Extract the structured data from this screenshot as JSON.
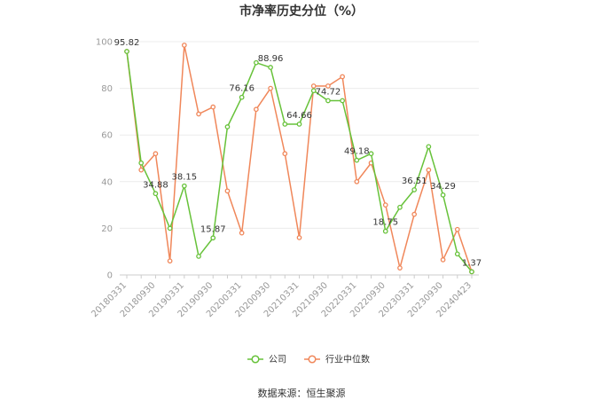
{
  "chart_data": {
    "type": "line",
    "title": "市净率历史分位（%）",
    "source": "数据来源：恒生聚源",
    "ylim": [
      0,
      100
    ],
    "yticks": [
      "0",
      "20",
      "40",
      "60",
      "80",
      "100"
    ],
    "x": [
      "20180331",
      "20180630",
      "20180930",
      "20181231",
      "20190331",
      "20190630",
      "20190930",
      "20191231",
      "20200331",
      "20200630",
      "20200930",
      "20201231",
      "20210331",
      "20210630",
      "20210930",
      "20211231",
      "20220331",
      "20220630",
      "20220930",
      "20221231",
      "20230331",
      "20230630",
      "20230930",
      "20231231",
      "20240423"
    ],
    "x_tick_labels": [
      "20180331",
      "20180930",
      "20190331",
      "20190930",
      "20200331",
      "20200930",
      "20210331",
      "20210930",
      "20220331",
      "20220930",
      "20230331",
      "20230930",
      "20240423"
    ],
    "series": [
      {
        "name": "公司",
        "color": "#67c23a",
        "values": [
          95.82,
          48,
          34.88,
          20,
          38.15,
          8,
          15.87,
          63.5,
          76.16,
          91,
          88.96,
          64.66,
          64.66,
          79,
          74.72,
          74.72,
          49.18,
          52,
          18.75,
          29,
          36.51,
          55,
          34.29,
          9,
          1.37
        ]
      },
      {
        "name": "行业中位数",
        "color": "#f0875a",
        "values": [
          95.82,
          45,
          52,
          6,
          98.5,
          69,
          72,
          36,
          18,
          71,
          80,
          52,
          16,
          81,
          81,
          85,
          40,
          48,
          30,
          3,
          26,
          45,
          6.5,
          19.5,
          1.37
        ]
      }
    ],
    "data_labels": [
      {
        "index": 0,
        "text": "95.82"
      },
      {
        "index": 2,
        "text": "34.88"
      },
      {
        "index": 4,
        "text": "38.15"
      },
      {
        "index": 6,
        "text": "15.87"
      },
      {
        "index": 8,
        "text": "76.16"
      },
      {
        "index": 10,
        "text": "88.96"
      },
      {
        "index": 12,
        "text": "64.66"
      },
      {
        "index": 14,
        "text": "74.72"
      },
      {
        "index": 16,
        "text": "49.18"
      },
      {
        "index": 18,
        "text": "18.75"
      },
      {
        "index": 20,
        "text": "36.51"
      },
      {
        "index": 22,
        "text": "34.29"
      },
      {
        "index": 24,
        "text": "1.37"
      }
    ],
    "grid": true,
    "legend_position": "bottom-center"
  }
}
